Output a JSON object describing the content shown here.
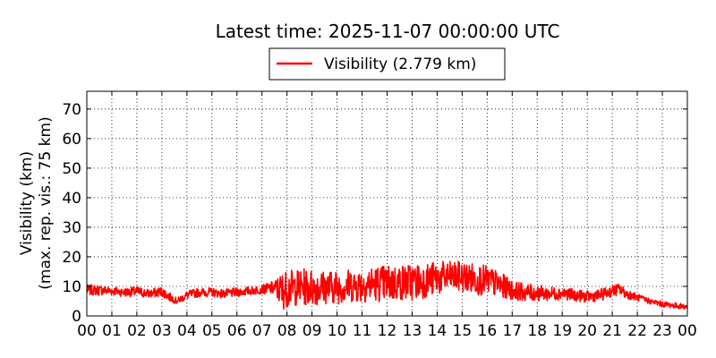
{
  "chart_data": {
    "type": "line",
    "title": "Latest time: 2025-11-07 00:00:00 UTC",
    "ylabel_line1": "Visibility (km)",
    "ylabel_line2": "(max. rep. vis.: 75 km)",
    "xlabel": "",
    "xlim": [
      0,
      24
    ],
    "ylim": [
      0,
      76
    ],
    "x_ticks": [
      0,
      1,
      2,
      3,
      4,
      5,
      6,
      7,
      8,
      9,
      10,
      11,
      12,
      13,
      14,
      15,
      16,
      17,
      18,
      19,
      20,
      21,
      22,
      23,
      24
    ],
    "x_tick_labels": [
      "00",
      "01",
      "02",
      "03",
      "04",
      "05",
      "06",
      "07",
      "08",
      "09",
      "10",
      "11",
      "12",
      "13",
      "14",
      "15",
      "16",
      "17",
      "18",
      "19",
      "20",
      "21",
      "22",
      "23",
      "00"
    ],
    "y_ticks": [
      0,
      10,
      20,
      30,
      40,
      50,
      60,
      70
    ],
    "y_tick_labels": [
      "0",
      "10",
      "20",
      "30",
      "40",
      "50",
      "60",
      "70"
    ],
    "grid": true,
    "legend_placement": "top-center, above plot",
    "series": [
      {
        "name": "Visibility (2.779 km)",
        "color": "#ff0000",
        "x": [
          0,
          0.5,
          1,
          1.5,
          2,
          2.5,
          3,
          3.3,
          3.6,
          4,
          4.5,
          5,
          5.5,
          6,
          6.5,
          7,
          7.5,
          7.8,
          8,
          8.5,
          9,
          9.5,
          10,
          10.5,
          11,
          11.5,
          12,
          12.5,
          13,
          13.5,
          14,
          14.5,
          15,
          15.5,
          16,
          16.5,
          17,
          17.5,
          18,
          18.5,
          19,
          19.5,
          20,
          20.5,
          21,
          21.3,
          21.5,
          22,
          22.5,
          23,
          23.5,
          24
        ],
        "y": [
          8.5,
          9,
          9,
          8,
          8,
          7.5,
          8.5,
          7,
          5,
          7,
          8,
          8,
          7.5,
          8,
          8.5,
          9,
          10.5,
          12,
          12.5,
          13,
          13.5,
          13,
          13,
          13.5,
          14,
          14.5,
          15,
          15,
          15.5,
          16,
          17,
          17.5,
          17.5,
          17,
          15,
          13,
          10.5,
          9.5,
          8.5,
          8,
          8,
          7,
          6.5,
          7,
          8.5,
          9.5,
          8,
          6,
          5,
          4,
          3.5,
          2.8
        ],
        "min_envelope": [
          7,
          7,
          7,
          6.5,
          6.5,
          6,
          6.5,
          5,
          4,
          5.5,
          6.5,
          6.5,
          6,
          6.5,
          7,
          7.5,
          7,
          2,
          3,
          3.5,
          3.5,
          4,
          4,
          4.5,
          4.5,
          5,
          4.5,
          5,
          5,
          6,
          7,
          8,
          8,
          7,
          7,
          6,
          5.5,
          5,
          5,
          5,
          5.5,
          5,
          4.5,
          5,
          6.5,
          7,
          6,
          5,
          4,
          3,
          2.5,
          2.2
        ],
        "max_envelope": [
          10.5,
          10.5,
          10,
          9.5,
          10,
          9,
          10,
          8,
          6,
          8.5,
          9.5,
          9.5,
          9,
          9.5,
          10,
          10.5,
          12,
          15,
          15.5,
          16,
          16,
          15.5,
          15.5,
          16,
          16.5,
          17,
          17.5,
          17.5,
          18,
          18,
          18.5,
          18.5,
          18.5,
          18,
          17,
          15,
          12,
          11,
          10.5,
          10,
          10,
          9,
          8.5,
          9,
          10.5,
          11,
          9.5,
          7.5,
          6,
          5,
          4.5,
          4
        ]
      }
    ]
  }
}
